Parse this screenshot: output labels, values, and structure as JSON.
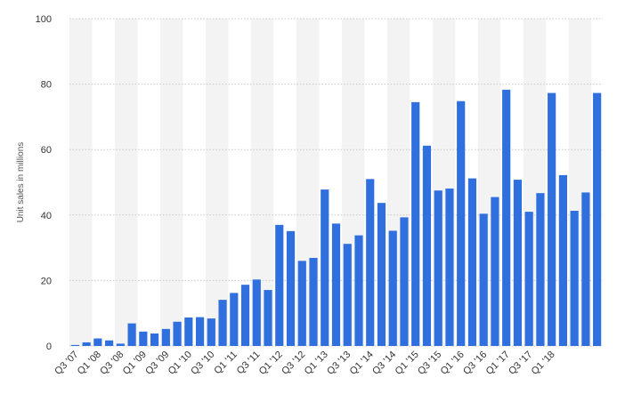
{
  "chart_data": {
    "type": "bar",
    "title": "",
    "xlabel": "",
    "ylabel": "Unit sales in millions",
    "ylim": [
      0,
      100
    ],
    "yticks": [
      0,
      20,
      40,
      60,
      80,
      100
    ],
    "grid": true,
    "bar_color": "#2f6fde",
    "band_color": "#f3f3f3",
    "categories": [
      "Q3 '07",
      "Q4 '07",
      "Q1 '08",
      "Q2 '08",
      "Q3 '08",
      "Q4 '08",
      "Q1 '09",
      "Q2 '09",
      "Q3 '09",
      "Q4 '09",
      "Q1 '10",
      "Q2 '10",
      "Q3 '10",
      "Q4 '10",
      "Q1 '11",
      "Q2 '11",
      "Q3 '11",
      "Q4 '11",
      "Q1 '12",
      "Q2 '12",
      "Q3 '12",
      "Q4 '12",
      "Q1 '13",
      "Q2 '13",
      "Q3 '13",
      "Q4 '13",
      "Q1 '14",
      "Q2 '14",
      "Q3 '14",
      "Q4 '14",
      "Q1 '15",
      "Q2 '15",
      "Q3 '15",
      "Q4 '15",
      "Q1 '16",
      "Q2 '16",
      "Q3 '16",
      "Q4 '16",
      "Q1 '17",
      "Q2 '17",
      "Q3 '17",
      "Q4 '17",
      "Q1 '18",
      "Q2 '18",
      "Q3 '18",
      "Q4 '18",
      "Q1 '19"
    ],
    "values": [
      0.3,
      1.1,
      2.3,
      1.7,
      0.7,
      6.9,
      4.4,
      3.8,
      5.2,
      7.4,
      8.7,
      8.8,
      8.4,
      14.1,
      16.2,
      18.7,
      20.3,
      17.1,
      37.0,
      35.1,
      26.0,
      26.9,
      47.8,
      37.4,
      31.2,
      33.8,
      51.0,
      43.7,
      35.2,
      39.3,
      74.5,
      61.2,
      47.5,
      48.1,
      74.8,
      51.2,
      40.4,
      45.5,
      78.3,
      50.8,
      41.0,
      46.7,
      77.3,
      52.2,
      41.3,
      46.9,
      77.3
    ],
    "visible_tick_labels": [
      "Q3 '07",
      "Q1 '08",
      "Q3 '08",
      "Q1 '09",
      "Q3 '09",
      "Q1 '10",
      "Q3 '10",
      "Q1 '11",
      "Q3 '11",
      "Q1 '12",
      "Q3 '12",
      "Q1 '13",
      "Q3 '13",
      "Q1 '14",
      "Q3 '14",
      "Q1 '15",
      "Q3 '15",
      "Q1 '16",
      "Q3 '16",
      "Q1 '17",
      "Q3 '17",
      "Q1 '18"
    ]
  }
}
